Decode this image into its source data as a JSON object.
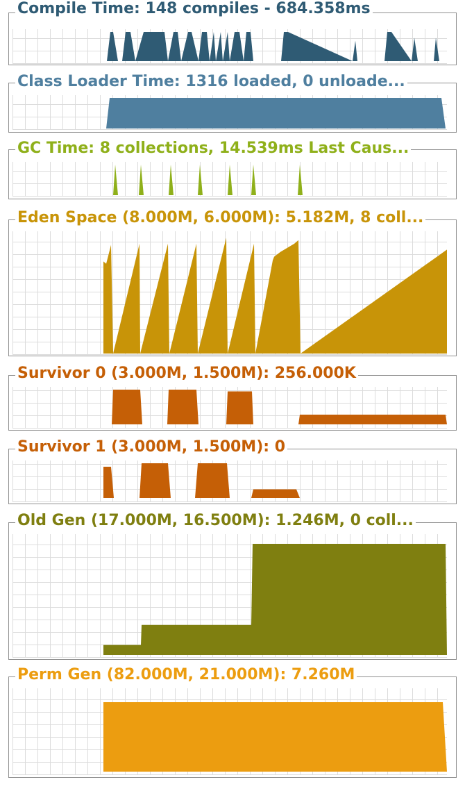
{
  "chart_data": [
    {
      "type": "area",
      "title": "Compile Time: 148 compiles - 684.358ms",
      "color": "#2f5b74",
      "grid": true,
      "x": [
        0,
        136,
        141,
        145,
        152,
        158,
        163,
        170,
        177,
        189,
        219,
        224,
        232,
        238,
        243,
        253,
        258,
        268,
        273,
        280,
        284,
        290,
        293,
        300,
        303,
        310,
        313,
        320,
        327,
        333,
        337,
        343,
        347,
        353,
        387,
        391,
        397,
        490,
        494,
        497,
        536,
        540,
        546,
        575,
        579,
        584,
        607,
        610,
        615,
        626
      ],
      "y": [
        0,
        0,
        1,
        1,
        0,
        0,
        1,
        1,
        0,
        1,
        1,
        0,
        1,
        1,
        0,
        1,
        1,
        0,
        1,
        1,
        0,
        1,
        0,
        1,
        0,
        1,
        0,
        1,
        1,
        0,
        1,
        1,
        0,
        0,
        0,
        1,
        1,
        0,
        0.7,
        0,
        0,
        1,
        1,
        0,
        0.8,
        0,
        0,
        0.8,
        0,
        0
      ]
    },
    {
      "type": "area",
      "title": "Class Loader Time: 1316 loaded, 0 unloade...",
      "color": "#4f7f9f",
      "grid": true,
      "x": [
        0,
        135,
        140,
        618,
        624,
        626
      ],
      "y": [
        0,
        0,
        1,
        1,
        0,
        0
      ]
    },
    {
      "type": "area",
      "title": "GC Time: 8 collections, 14.539ms Last Caus...",
      "color": "#8fb01a",
      "grid": true,
      "x": [
        0,
        145,
        148,
        152,
        182,
        185,
        189,
        225,
        228,
        232,
        267,
        270,
        274,
        310,
        313,
        317,
        344,
        347,
        351,
        411,
        414,
        418,
        626
      ],
      "y": [
        0,
        0,
        1,
        0,
        0,
        1,
        0,
        0,
        1,
        0,
        0,
        1,
        0,
        0,
        1,
        0,
        0,
        1,
        0,
        0,
        1,
        0,
        0
      ]
    },
    {
      "type": "area",
      "title": "Eden Space (8.000M, 6.000M): 5.182M, 8 coll...",
      "color": "#c89408",
      "grid": true,
      "x": [
        0,
        131,
        131,
        135,
        142,
        145,
        183,
        184,
        224,
        226,
        265,
        267,
        308,
        310,
        348,
        350,
        375,
        377,
        386,
        406,
        412,
        415,
        626
      ],
      "y": [
        0,
        0,
        0.78,
        0.76,
        0.92,
        0,
        0.93,
        0,
        0.93,
        0,
        0.93,
        0,
        0.98,
        0,
        0.93,
        0,
        0.79,
        0.82,
        0.86,
        0.93,
        0.96,
        0,
        0.88
      ]
    },
    {
      "type": "area",
      "title": "Survivor 0 (3.000M, 1.500M): 256.000K",
      "color": "#c55f06",
      "grid": true,
      "x": [
        0,
        143,
        145,
        184,
        187,
        223,
        225,
        265,
        268,
        308,
        310,
        345,
        347,
        412,
        414,
        624,
        626
      ],
      "y": [
        0,
        0,
        1,
        1,
        0,
        0,
        1,
        1,
        0,
        0,
        0.95,
        0.95,
        0,
        0,
        0.28,
        0.28,
        0
      ]
    },
    {
      "type": "area",
      "title": "Survivor 1 (3.000M, 1.500M): 0",
      "color": "#c55f06",
      "grid": true,
      "x": [
        0,
        131,
        131,
        142,
        146,
        183,
        186,
        224,
        228,
        263,
        267,
        309,
        313,
        344,
        347,
        409,
        414,
        626
      ],
      "y": [
        0,
        0,
        0.9,
        0.9,
        0,
        0,
        1,
        1,
        0,
        0,
        1,
        1,
        0,
        0,
        0.25,
        0.25,
        0,
        0
      ]
    },
    {
      "type": "area",
      "title": "Old Gen (17.000M, 16.500M): 1.246M, 0 coll...",
      "color": "#7f7f10",
      "grid": true,
      "x": [
        0,
        131,
        131,
        185,
        186,
        344,
        346,
        624,
        626
      ],
      "y": [
        0,
        0,
        0.09,
        0.09,
        0.27,
        0.27,
        1,
        1,
        0
      ]
    },
    {
      "type": "area",
      "title": "Perm Gen (82.000M, 21.000M): 7.260M",
      "color": "#ec9d10",
      "grid": true,
      "x": [
        0,
        131,
        131,
        620,
        626,
        626
      ],
      "y": [
        0,
        0,
        1,
        1,
        0,
        0
      ]
    }
  ]
}
